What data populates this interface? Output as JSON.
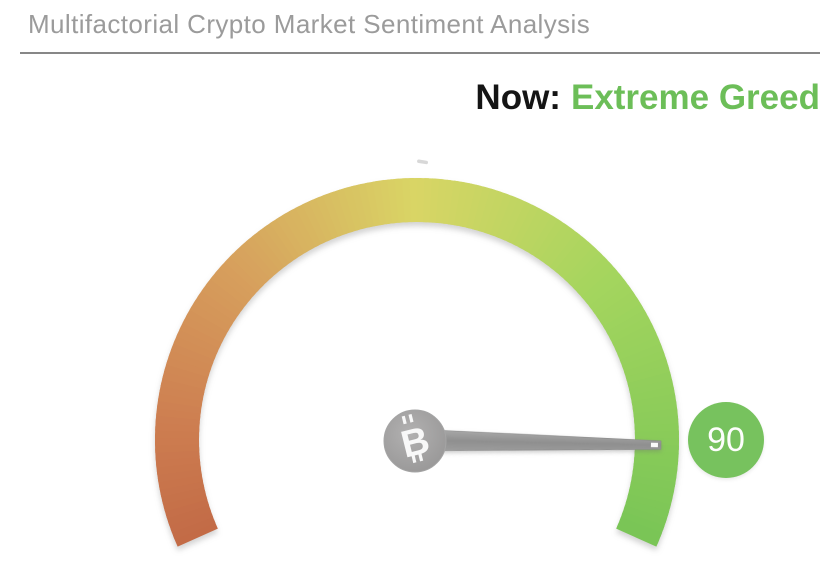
{
  "header": {
    "title": "Multifactorial Crypto Market Sentiment Analysis"
  },
  "status": {
    "label": "Now:",
    "value": "Extreme Greed",
    "value_color": "#6cbe58"
  },
  "chart_data": {
    "type": "gauge",
    "title": "Multifactorial Crypto Market Sentiment Analysis",
    "current_sentiment": "Extreme Greed",
    "value": 90,
    "min": 0,
    "max": 100,
    "start_angle_deg": 204,
    "end_angle_deg": -24,
    "band_color_stops": [
      {
        "t": 0.0,
        "color": "#c26a46"
      },
      {
        "t": 0.12,
        "color": "#cd7d50"
      },
      {
        "t": 0.3,
        "color": "#d7a05d"
      },
      {
        "t": 0.5,
        "color": "#d9d565"
      },
      {
        "t": 0.72,
        "color": "#a4d55e"
      },
      {
        "t": 1.0,
        "color": "#79c556"
      }
    ],
    "needle_color": "#9a9a9a",
    "pivot_color": "#9d9d9d",
    "pivot_icon": "bitcoin",
    "legend_position": "none",
    "grid": false
  },
  "badge": {
    "bg_color": "#77c25e",
    "text_color": "#fdfefc"
  }
}
